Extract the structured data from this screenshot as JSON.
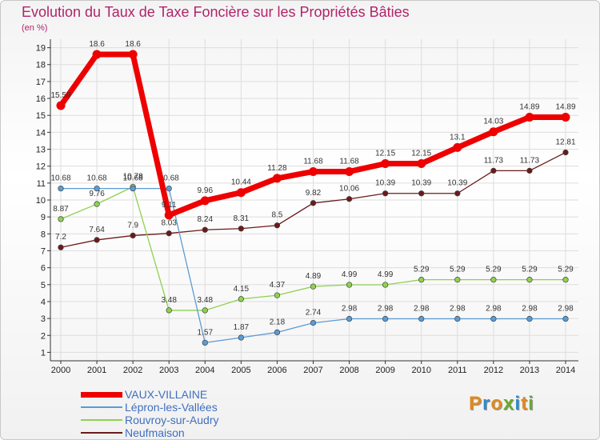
{
  "header": {
    "title": "Evolution du Taux de Taxe Foncière sur les Propriétés Bâties",
    "unit": "(en %)"
  },
  "brand": {
    "logo_text": "Proxiti",
    "logo_colors": [
      "#e08a1e",
      "#2e8bc9",
      "#e08a1e",
      "#6aaa2a",
      "#2e8bc9",
      "#e08a1e",
      "#6aaa2a"
    ]
  },
  "chart_data": {
    "type": "line",
    "title": "Evolution du Taux de Taxe Foncière sur les Propriétés Bâties",
    "ylabel": "(en %)",
    "xlabel": "",
    "ylim": [
      0.5,
      19.5
    ],
    "yticks": [
      1,
      2,
      3,
      4,
      5,
      6,
      7,
      8,
      9,
      10,
      11,
      12,
      13,
      14,
      15,
      16,
      17,
      18,
      19
    ],
    "grid": true,
    "legend_position": "bottom-left",
    "x": [
      "2000",
      "2001",
      "2002",
      "2003",
      "2004",
      "2005",
      "2006",
      "2007",
      "2008",
      "2009",
      "2010",
      "2011",
      "2012",
      "2013",
      "2014"
    ],
    "series": [
      {
        "name": "Neufmaison",
        "color": "#6b1a1a",
        "values": [
          7.2,
          7.64,
          7.9,
          8.03,
          8.24,
          8.31,
          8.5,
          9.82,
          10.06,
          10.39,
          10.39,
          10.39,
          11.73,
          11.73,
          12.81
        ],
        "labels": [
          "7.2",
          "7.64",
          "7.9",
          "8.03",
          "8.24",
          "8.31",
          "8.5",
          "9.82",
          "10.06",
          "10.39",
          "10.39",
          "10.39",
          "11.73",
          "11.73",
          "12.81"
        ]
      },
      {
        "name": "Rouvroy-sur-Audry",
        "color": "#8fd14f",
        "values": [
          8.87,
          9.76,
          10.78,
          3.48,
          3.48,
          4.15,
          4.37,
          4.89,
          4.99,
          4.99,
          5.29,
          5.29,
          5.29,
          5.29,
          5.29
        ],
        "labels": [
          "8.87",
          "9.76",
          "10.78",
          "3.48",
          "3.48",
          "4.15",
          "4.37",
          "4.89",
          "4.99",
          "4.99",
          "5.29",
          "5.29",
          "5.29",
          "5.29",
          "5.29"
        ]
      },
      {
        "name": "Lépron-les-Vallées",
        "color": "#5b9bd5",
        "values": [
          10.68,
          10.68,
          10.68,
          10.68,
          1.57,
          1.87,
          2.18,
          2.74,
          2.98,
          2.98,
          2.98,
          2.98,
          2.98,
          2.98,
          2.98
        ],
        "labels": [
          "10.68",
          "10.68",
          "10.68",
          "10.68",
          "1.57",
          "1.87",
          "2.18",
          "2.74",
          "2.98",
          "2.98",
          "2.98",
          "2.98",
          "2.98",
          "2.98",
          "2.98"
        ]
      },
      {
        "name": "VAUX-VILLAINE",
        "color": "#ee0000",
        "values": [
          15.58,
          18.6,
          18.6,
          9.11,
          9.96,
          10.44,
          11.28,
          11.68,
          11.68,
          12.15,
          12.15,
          13.1,
          14.03,
          14.89,
          14.89
        ],
        "labels": [
          "15.58",
          "18.6",
          "18.6",
          "9.11",
          "9.96",
          "10.44",
          "11.28",
          "11.68",
          "11.68",
          "12.15",
          "12.15",
          "13.1",
          "14.03",
          "14.89",
          "14.89"
        ]
      }
    ],
    "legend_order": [
      "VAUX-VILLAINE",
      "Lépron-les-Vallées",
      "Rouvroy-sur-Audry",
      "Neufmaison"
    ]
  }
}
